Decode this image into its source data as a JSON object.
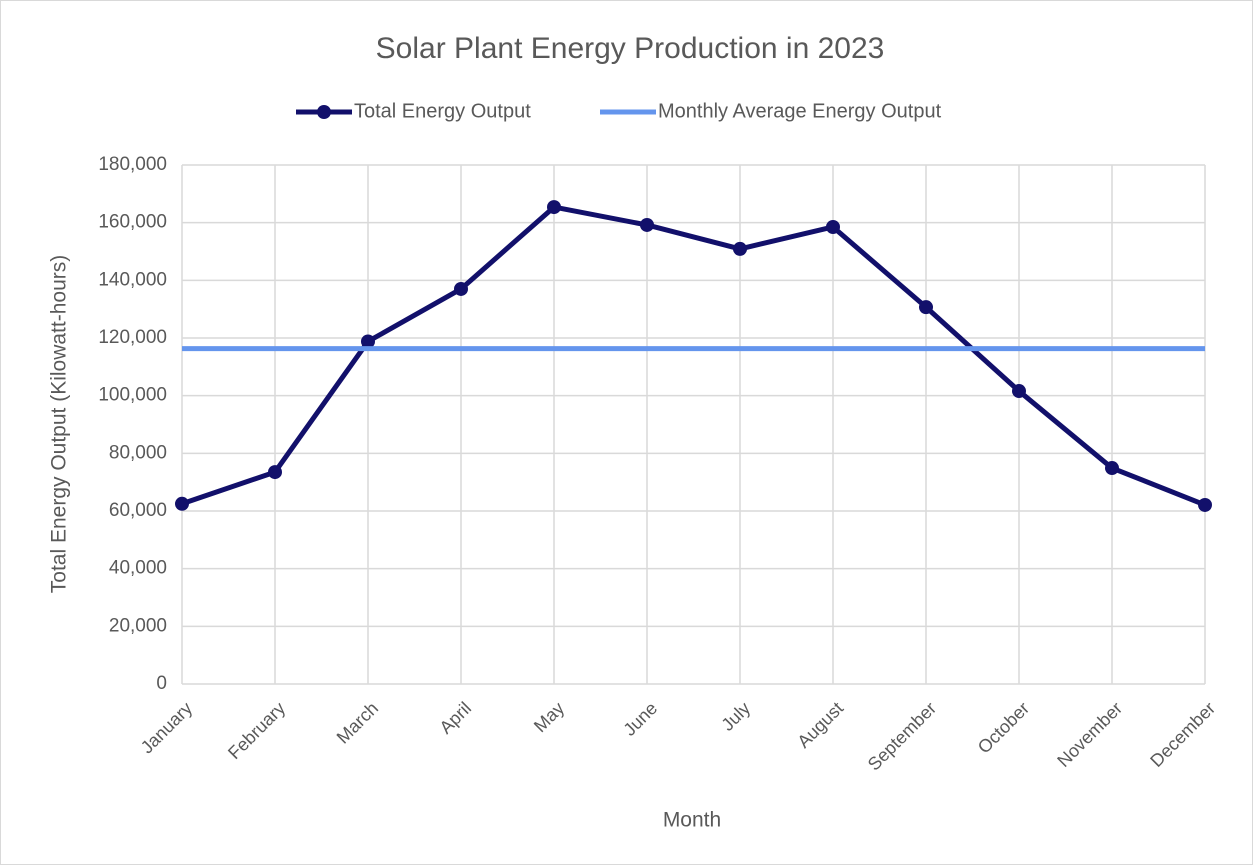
{
  "chart_data": {
    "type": "line",
    "title": "Solar Plant Energy Production in 2023",
    "x_label": "Month",
    "y_label": "Total Energy Output (Kilowatt-hours)",
    "categories": [
      "January",
      "February",
      "March",
      "April",
      "May",
      "June",
      "July",
      "August",
      "September",
      "October",
      "November",
      "December"
    ],
    "series": [
      {
        "name": "Total Energy Output",
        "color": "#12106b",
        "markers": true,
        "values": [
          62500,
          73500,
          118800,
          137000,
          165400,
          159200,
          150900,
          158500,
          130700,
          101600,
          74900,
          62100
        ]
      },
      {
        "name": "Monthly Average Energy Output",
        "color": "#6495ed",
        "markers": false,
        "values": [
          116300,
          116300,
          116300,
          116300,
          116300,
          116300,
          116300,
          116300,
          116300,
          116300,
          116300,
          116300
        ]
      }
    ],
    "ylim": [
      0,
      180000
    ],
    "yticks": [
      0,
      {
        "value": 20000,
        "label": "20,000"
      },
      {
        "value": 40000,
        "label": "40,000"
      },
      {
        "value": 60000,
        "label": "60,000"
      },
      {
        "value": 80000,
        "label": "80,000"
      },
      {
        "value": 100000,
        "label": "100,000"
      },
      {
        "value": 120000,
        "label": "120,000"
      },
      {
        "value": 140000,
        "label": "140,000"
      },
      {
        "value": 160000,
        "label": "160,000"
      },
      {
        "value": 180000,
        "label": "180,000"
      }
    ],
    "grid": true,
    "legend": "top"
  }
}
